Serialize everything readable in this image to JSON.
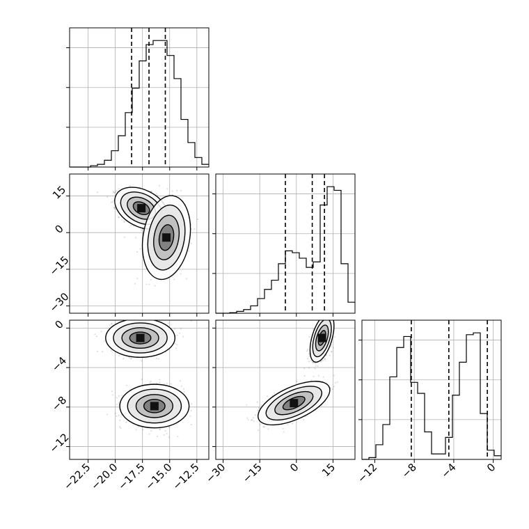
{
  "chart_data": {
    "type": "corner",
    "title": "",
    "variables": [
      {
        "label": "",
        "range": [
          -24.2,
          -11.4
        ],
        "ticks": [
          -22.5,
          -20.0,
          -17.5,
          -15.0,
          -12.5
        ],
        "tick_labels": [
          "−22.5",
          "−20.0",
          "−17.5",
          "−15.0",
          "−12.5"
        ],
        "quantiles": [
          -18.5,
          -16.9,
          -15.4
        ]
      },
      {
        "label": "",
        "range": [
          -33,
          24
        ],
        "ticks": [
          -30,
          -15,
          0,
          15
        ],
        "tick_labels": [
          "−30",
          "−15",
          "0",
          "15"
        ],
        "quantiles": [
          -4.5,
          6.5,
          11.5
        ]
      },
      {
        "label": "",
        "range": [
          -13.3,
          0.8
        ],
        "ticks": [
          -12,
          -8,
          -4,
          0
        ],
        "tick_labels": [
          "−12",
          "−8",
          "−4",
          "0"
        ],
        "quantiles": [
          -8.3,
          -4.5,
          -0.6
        ]
      }
    ],
    "histograms": [
      {
        "variable": 0,
        "bin_edges_start": -24.2,
        "bin_width": 0.64,
        "counts": [
          0,
          0,
          0,
          1,
          2,
          5,
          12,
          23,
          40,
          58,
          78,
          90,
          93,
          93,
          82,
          65,
          35,
          18,
          7,
          2
        ]
      },
      {
        "variable": 1,
        "bin_edges_start": -33.0,
        "bin_width": 2.85,
        "counts": [
          0,
          0,
          0.3,
          1,
          2,
          4,
          8,
          13,
          18,
          27,
          34,
          33,
          30,
          25,
          28,
          59,
          69,
          67,
          27,
          6
        ]
      },
      {
        "variable": 2,
        "bin_edges_start": -13.3,
        "bin_width": 0.705,
        "counts": [
          0,
          1,
          8,
          19,
          45,
          61,
          67,
          42,
          36,
          15,
          3,
          3,
          12,
          35,
          53,
          68,
          69,
          25,
          5,
          2
        ]
      }
    ],
    "pairs": [
      {
        "x": 0,
        "y": 1,
        "modes": [
          {
            "x": -17.6,
            "y": 10,
            "sx": 1.0,
            "sy": 3.5,
            "rho": -0.35,
            "weight": 0.55
          },
          {
            "x": -15.3,
            "y": -2,
            "sx": 0.9,
            "sy": 7,
            "rho": 0.2,
            "weight": 0.45
          }
        ]
      },
      {
        "x": 0,
        "y": 2,
        "modes": [
          {
            "x": -17.7,
            "y": -1.0,
            "sx": 1.3,
            "sy": 0.8,
            "rho": 0,
            "weight": 0.5
          },
          {
            "x": -16.4,
            "y": -7.9,
            "sx": 1.3,
            "sy": 0.9,
            "rho": 0,
            "weight": 0.5
          }
        ]
      },
      {
        "x": 1,
        "y": 2,
        "modes": [
          {
            "x": 10.5,
            "y": -1.0,
            "sx": 2.0,
            "sy": 1.0,
            "rho": 0.5,
            "weight": 0.5
          },
          {
            "x": -1.0,
            "y": -7.6,
            "sx": 6.0,
            "sy": 0.9,
            "rho": 0.6,
            "weight": 0.5
          }
        ]
      }
    ],
    "grid": true
  }
}
